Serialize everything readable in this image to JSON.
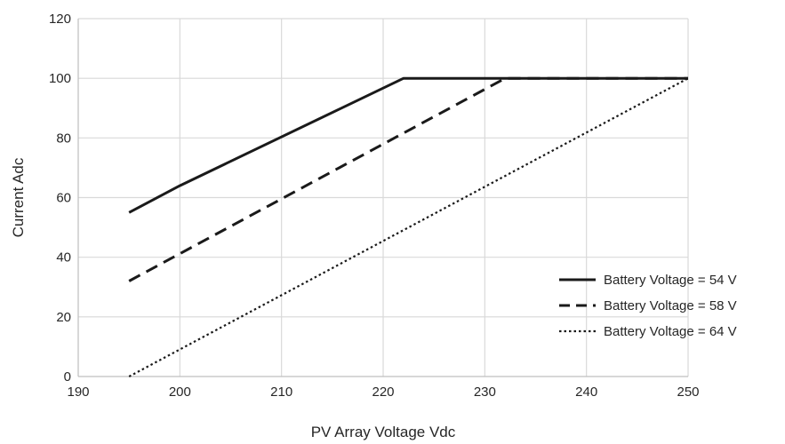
{
  "chart_data": {
    "type": "line",
    "title": "",
    "xlabel": "PV Array Voltage Vdc",
    "ylabel": "Current Adc",
    "xlim": [
      190,
      250
    ],
    "ylim": [
      0,
      120
    ],
    "x_ticks": [
      190,
      200,
      210,
      220,
      230,
      240,
      250
    ],
    "y_ticks": [
      0,
      20,
      40,
      60,
      80,
      100,
      120
    ],
    "x_tick_labels": [
      "190",
      "200",
      "210",
      "220",
      "230",
      "240",
      "250"
    ],
    "y_tick_labels": [
      "0",
      "20",
      "40",
      "60",
      "80",
      "100",
      "120"
    ],
    "grid": true,
    "legend_position": "lower-right",
    "series": [
      {
        "name": "Battery Voltage = 54 V",
        "line_style": "solid",
        "color": "#1a1a1a",
        "x": [
          195,
          200,
          222,
          250
        ],
        "y": [
          55,
          64,
          100,
          100
        ]
      },
      {
        "name": "Battery Voltage = 58 V",
        "line_style": "dashed",
        "color": "#1a1a1a",
        "x": [
          195,
          232,
          250
        ],
        "y": [
          32,
          100,
          100
        ]
      },
      {
        "name": "Battery Voltage = 64 V",
        "line_style": "dotted",
        "color": "#1a1a1a",
        "x": [
          195,
          250
        ],
        "y": [
          0,
          100
        ]
      }
    ]
  }
}
